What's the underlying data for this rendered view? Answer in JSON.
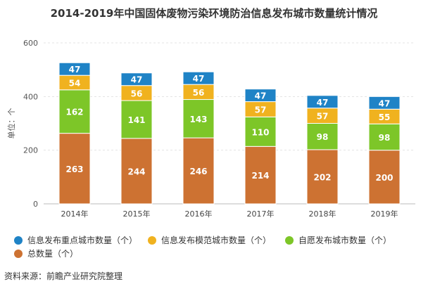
{
  "chart_data": {
    "type": "bar",
    "title": "2014-2019年中国固体废物污染环境防治信息发布城市数量统计情况",
    "ylabel": "单位：个",
    "ylim": [
      0,
      600
    ],
    "yticks": [
      0,
      200,
      400,
      600
    ],
    "categories": [
      "2014年",
      "2015年",
      "2016年",
      "2017年",
      "2018年",
      "2019年"
    ],
    "series": [
      {
        "name": "总数量（个）",
        "color": "#cd7232",
        "values": [
          263,
          244,
          246,
          214,
          202,
          200
        ]
      },
      {
        "name": "自愿发布城市数量（个）",
        "color": "#7dc628",
        "values": [
          162,
          141,
          143,
          110,
          98,
          98
        ]
      },
      {
        "name": "信息发布模范城市数量（个）",
        "color": "#f0b21f",
        "values": [
          54,
          56,
          56,
          57,
          57,
          55
        ]
      },
      {
        "name": "信息发布重点城市数量（个）",
        "color": "#1f83c6",
        "values": [
          47,
          47,
          47,
          47,
          47,
          47
        ]
      }
    ],
    "legend_order": [
      3,
      2,
      1,
      0
    ],
    "legend_position": "bottom",
    "grid": true
  },
  "source": "资料来源：前瞻产业研究院整理"
}
